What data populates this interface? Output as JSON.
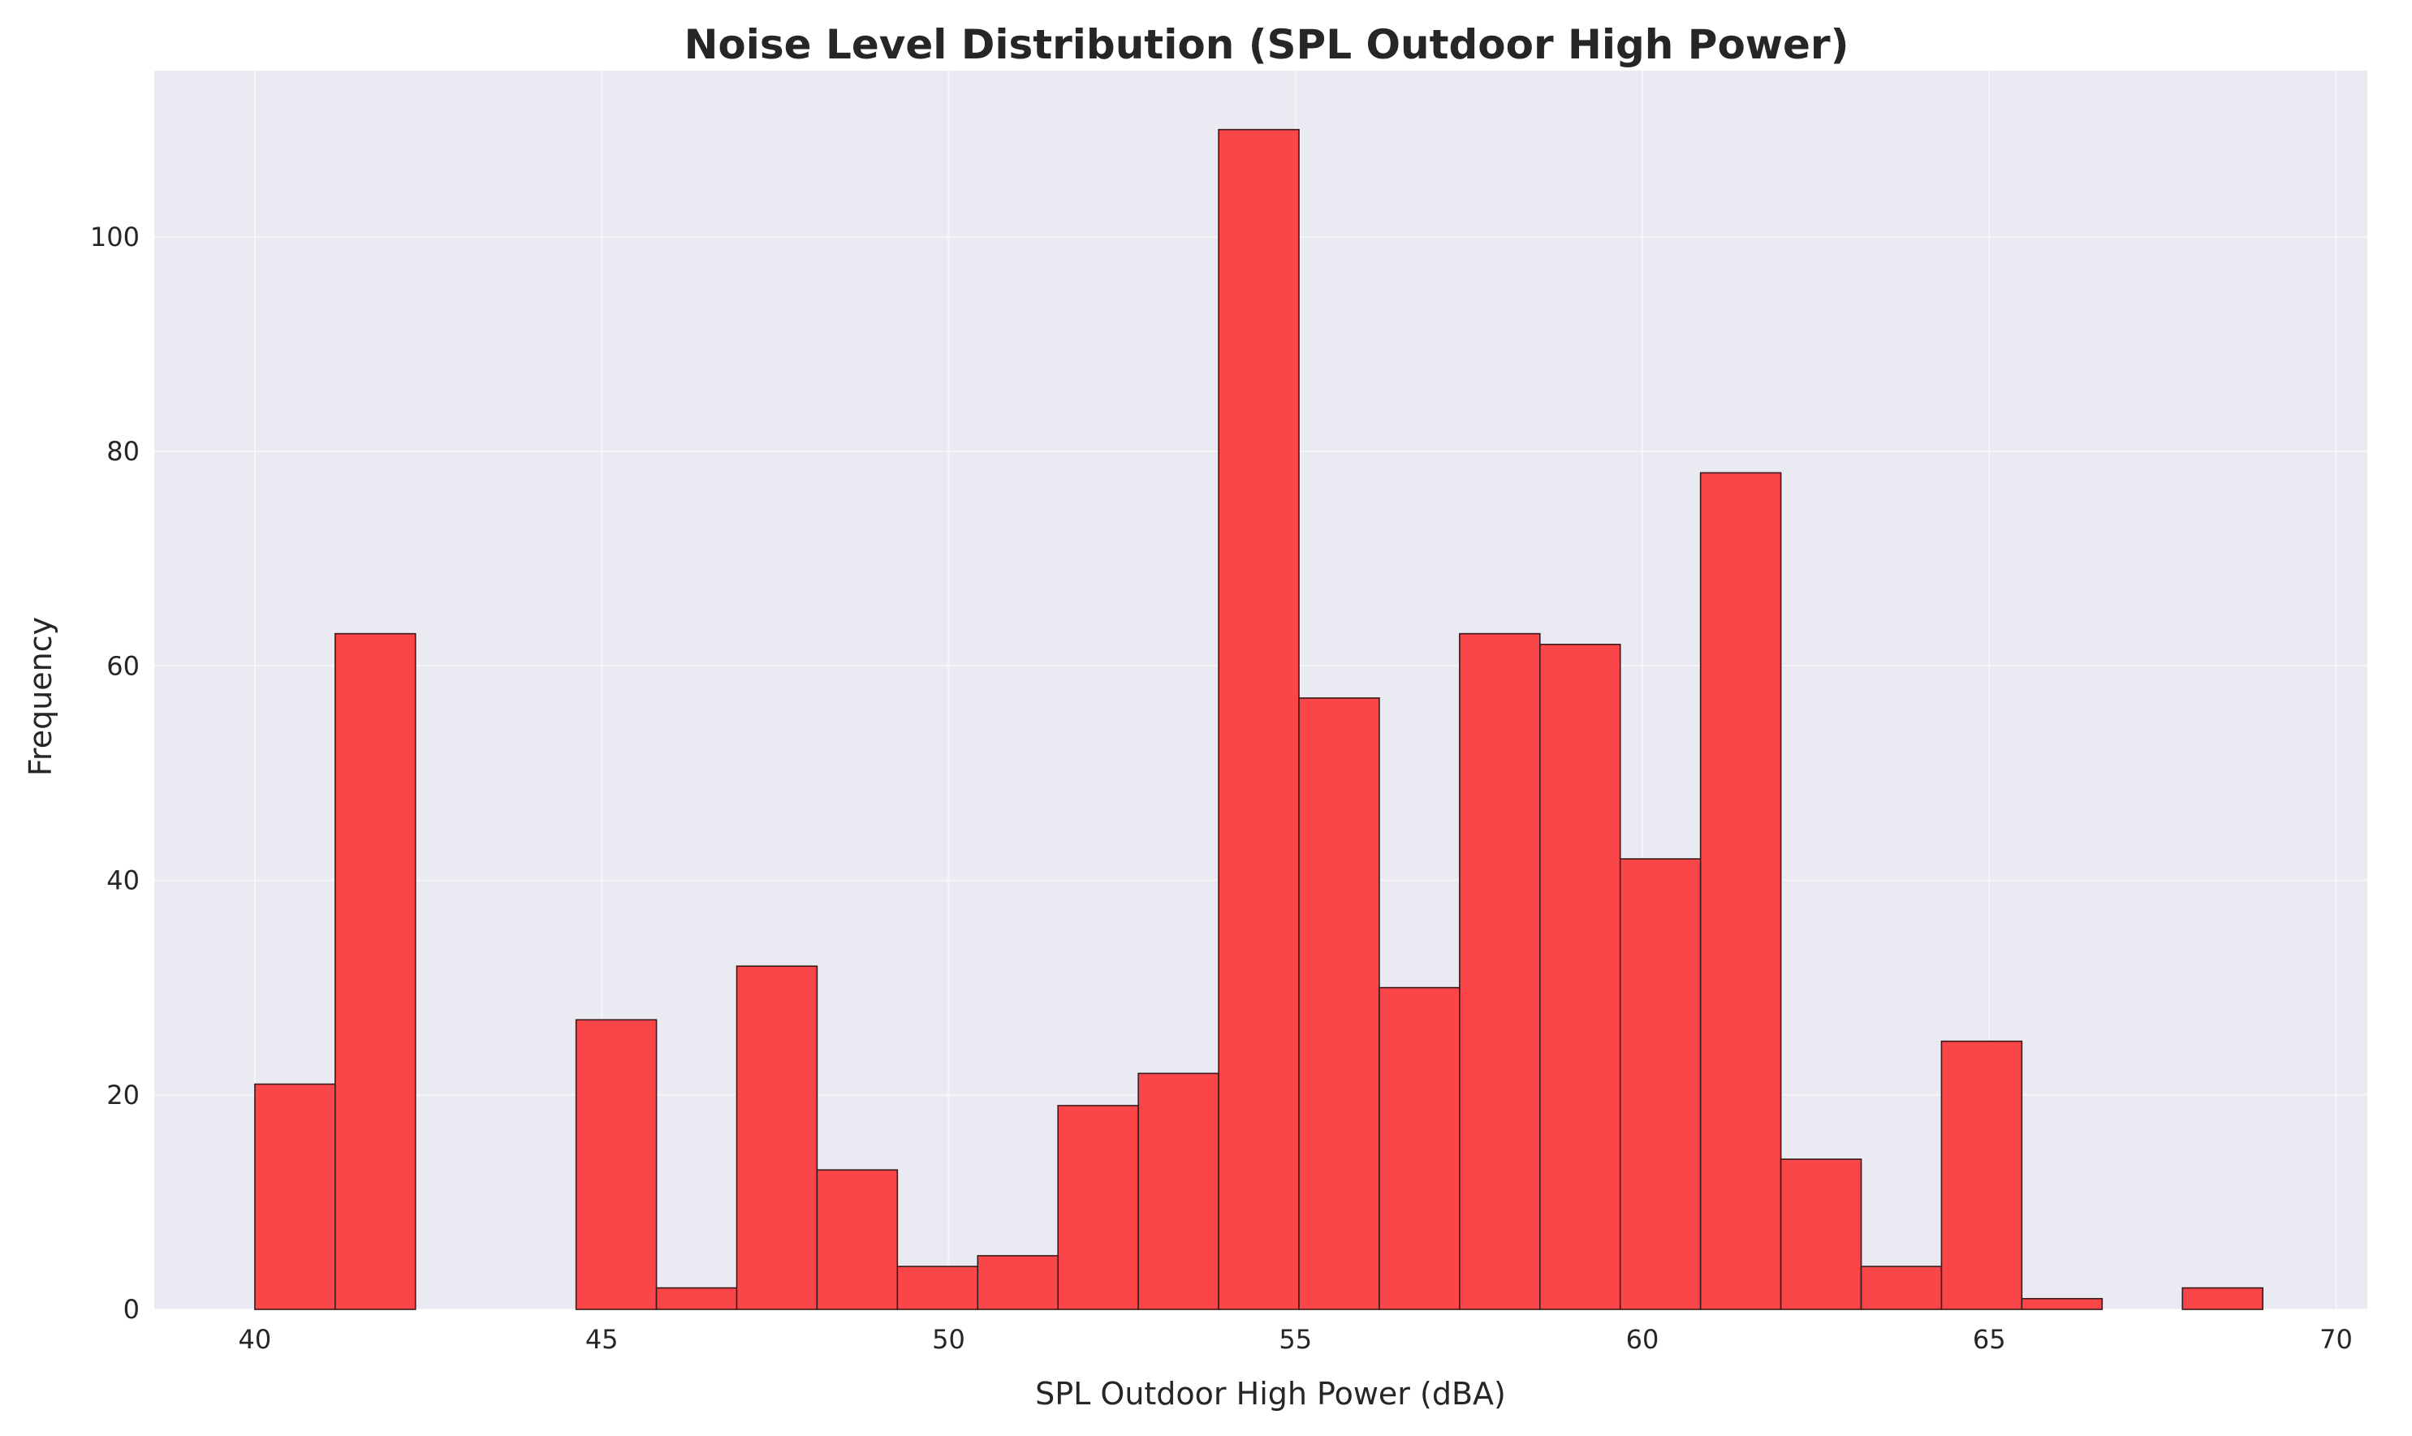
{
  "chart_data": {
    "type": "bar",
    "title": "Noise Level Distribution (SPL Outdoor High Power)",
    "xlabel": "SPL Outdoor High Power (dBA)",
    "ylabel": "Frequency",
    "xlim": [
      38.55,
      70.45
    ],
    "ylim": [
      0,
      115.5
    ],
    "xticks": [
      40,
      45,
      50,
      55,
      60,
      65,
      70
    ],
    "yticks": [
      0,
      20,
      40,
      60,
      80,
      100
    ],
    "grid": true,
    "bins": {
      "start": 40.0,
      "width": 1.1577,
      "counts": [
        21,
        63,
        0,
        0,
        27,
        2,
        32,
        13,
        4,
        5,
        19,
        22,
        110,
        57,
        30,
        63,
        62,
        42,
        78,
        14,
        4,
        25,
        1,
        0,
        2
      ]
    },
    "colors": {
      "bar": "#fa4549",
      "bar_edge": "#3a1a1a",
      "background": "#eaeaf2"
    }
  }
}
